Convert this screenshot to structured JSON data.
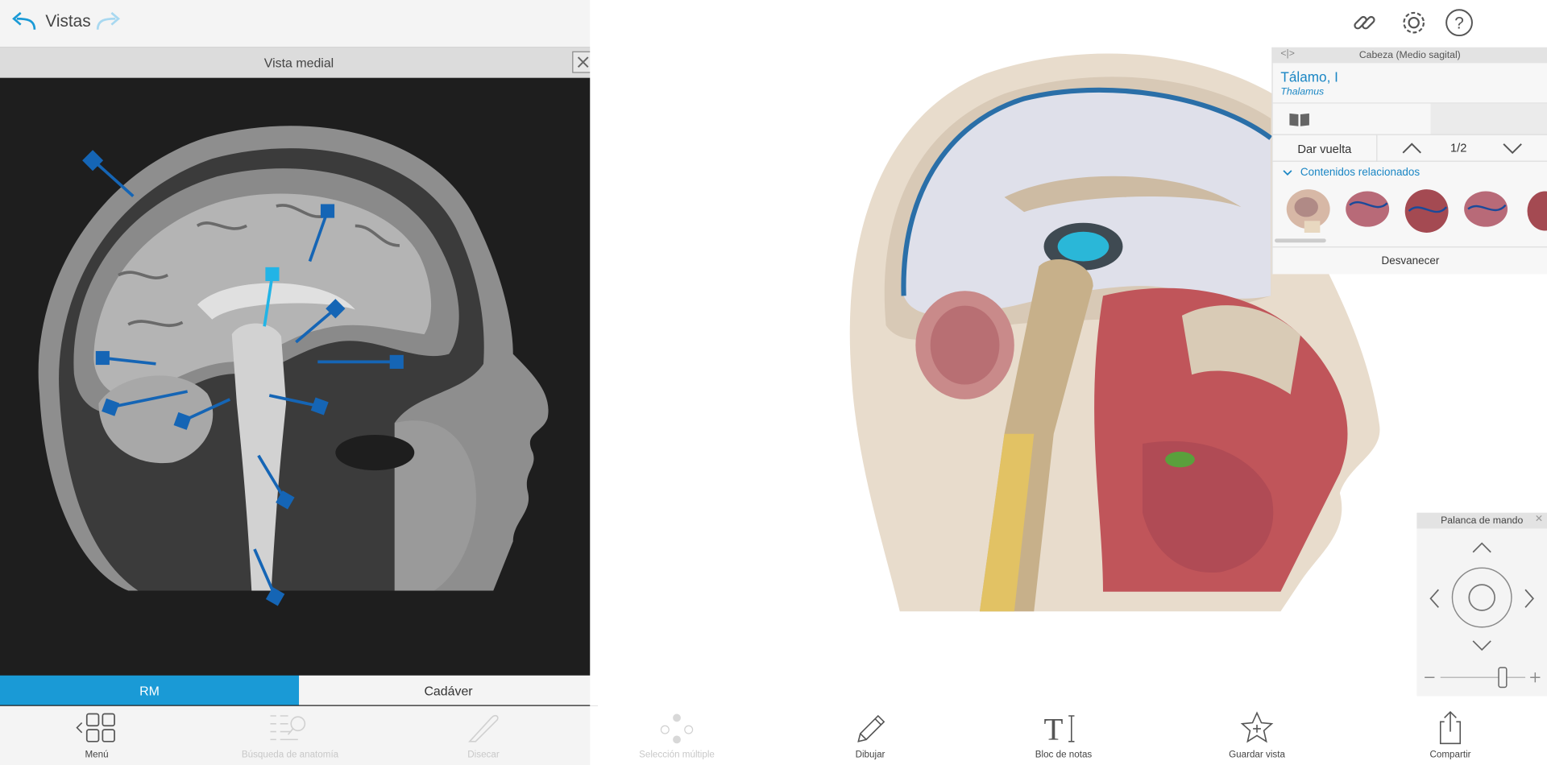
{
  "topbar": {
    "title": "Vistas"
  },
  "viewer": {
    "header": "Vista medial",
    "tabs": [
      {
        "label": "RM",
        "active": true
      },
      {
        "label": "Cadáver",
        "active": false
      }
    ]
  },
  "toolbar": [
    {
      "label": "Menú",
      "icon": "grid-menu-icon",
      "enabled": true
    },
    {
      "label": "Búsqueda de anatomía",
      "icon": "anatomy-search-icon",
      "enabled": false
    },
    {
      "label": "Disecar",
      "icon": "scalpel-icon",
      "enabled": false
    },
    {
      "label": "Selección múltiple",
      "icon": "multi-select-icon",
      "enabled": false
    },
    {
      "label": "Dibujar",
      "icon": "pencil-icon",
      "enabled": true
    },
    {
      "label": "Bloc de notas",
      "icon": "text-notes-icon",
      "enabled": true
    },
    {
      "label": "Guardar vista",
      "icon": "star-add-icon",
      "enabled": true
    },
    {
      "label": "Compartir",
      "icon": "share-icon",
      "enabled": true
    }
  ],
  "info_panel": {
    "header": "Cabeza (Medio sagital)",
    "structure_name": "Tálamo, I",
    "structure_latin": "Thalamus",
    "flip_label": "Dar vuelta",
    "page_indicator": "1/2",
    "related_label": "Contenidos relacionados",
    "fade_label": "Desvanecer"
  },
  "joystick": {
    "title": "Palanca de mando"
  },
  "colors": {
    "accent": "#1a9ad6",
    "link": "#1a86c4",
    "marker": "#1565b5",
    "marker_selected": "#22b4e6"
  }
}
